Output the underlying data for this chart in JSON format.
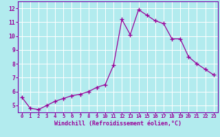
{
  "x": [
    0,
    1,
    2,
    3,
    4,
    5,
    6,
    7,
    8,
    9,
    10,
    11,
    12,
    13,
    14,
    15,
    16,
    17,
    18,
    19,
    20,
    21,
    22,
    23
  ],
  "y": [
    5.6,
    4.8,
    4.7,
    5.0,
    5.3,
    5.5,
    5.7,
    5.8,
    6.0,
    6.3,
    6.5,
    7.9,
    11.2,
    10.1,
    11.9,
    11.5,
    11.1,
    10.9,
    9.8,
    9.8,
    8.5,
    8.0,
    7.6,
    7.2
  ],
  "line_color": "#990099",
  "marker": "+",
  "markersize": 4,
  "linewidth": 0.9,
  "bg_color": "#b2ebee",
  "grid_color": "#ffffff",
  "xlabel": "Windchill (Refroidissement éolien,°C)",
  "xlabel_color": "#990099",
  "tick_color": "#990099",
  "spine_color": "#7700aa",
  "xlim_min": -0.5,
  "xlim_max": 23.5,
  "ylim_min": 4.5,
  "ylim_max": 12.5,
  "yticks": [
    5,
    6,
    7,
    8,
    9,
    10,
    11,
    12
  ],
  "xticks": [
    0,
    1,
    2,
    3,
    4,
    5,
    6,
    7,
    8,
    9,
    10,
    11,
    12,
    13,
    14,
    15,
    16,
    17,
    18,
    19,
    20,
    21,
    22,
    23
  ],
  "xlabel_fontsize": 6.0,
  "tick_fontsize_x": 5.2,
  "tick_fontsize_y": 5.8
}
